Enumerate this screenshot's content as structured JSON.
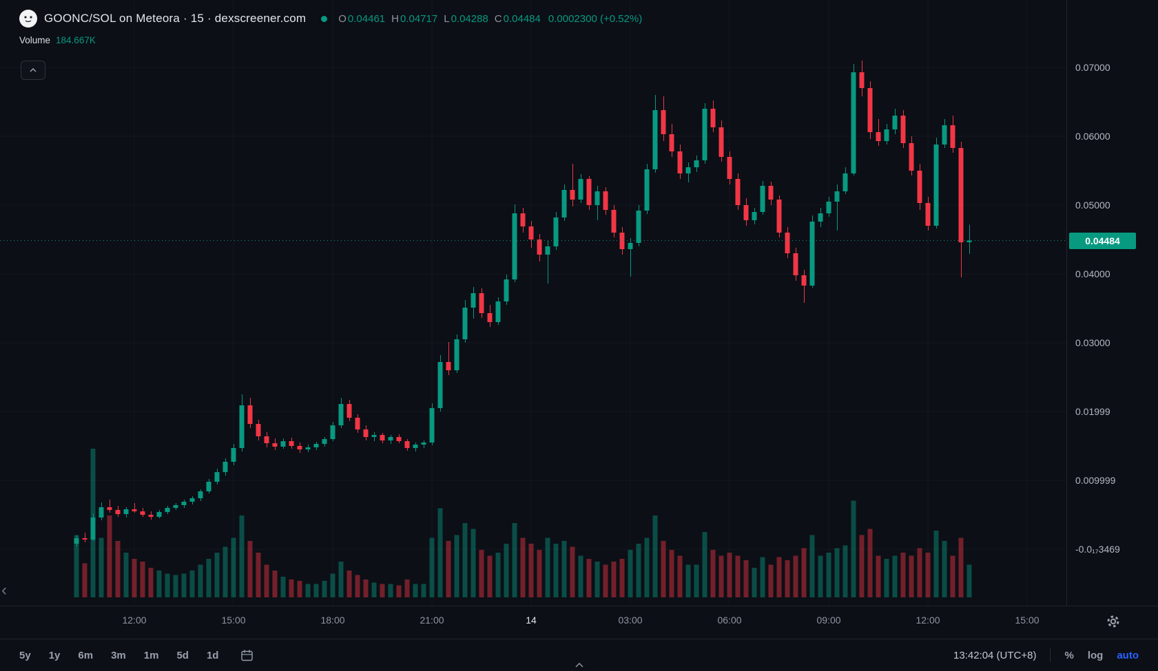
{
  "header": {
    "symbol_title": "GOONC/SOL on Meteora · 15 · dexscreener.com",
    "ohlc": {
      "o_label": "O",
      "o": "0.04461",
      "h_label": "H",
      "h": "0.04717",
      "l_label": "L",
      "l": "0.04288",
      "c_label": "C",
      "c": "0.04484",
      "change": "0.0002300 (+0.52%)"
    },
    "volume_label": "Volume",
    "volume_value": "184.667K"
  },
  "colors": {
    "up": "#089981",
    "down": "#f23645",
    "up_volume": "rgba(8,153,129,0.45)",
    "down_volume": "rgba(242,54,69,0.45)",
    "badge_bg": "#089981",
    "accent_blue": "#2962ff",
    "background": "#0c0f16"
  },
  "toolbar": {
    "ranges": [
      "5y",
      "1y",
      "6m",
      "3m",
      "1m",
      "5d",
      "1d"
    ],
    "clock": "13:42:04 (UTC+8)",
    "percent_label": "%",
    "log_label": "log",
    "auto_label": "auto"
  },
  "chart_data": {
    "type": "candlestick",
    "title": "GOONC/SOL on Meteora · 15 · dexscreener.com",
    "interval_minutes": 15,
    "ohlc_readout": {
      "open": 0.04461,
      "high": 0.04717,
      "low": 0.04288,
      "close": 0.04484,
      "change": "0.0002300 (+0.52%)"
    },
    "volume_readout": "184.667K",
    "last_price": {
      "value": 0.04484,
      "label": "0.04484"
    },
    "price_axis": {
      "labels": [
        {
          "text": "0.07000",
          "value": 0.07
        },
        {
          "text": "0.06000",
          "value": 0.06
        },
        {
          "text": "0.05000",
          "value": 0.05
        },
        {
          "text": "0.04000",
          "value": 0.04
        },
        {
          "text": "0.03000",
          "value": 0.03
        },
        {
          "text": "0.01999",
          "value": 0.02
        },
        {
          "text": "0.009999",
          "value": 0.01
        },
        {
          "text": "-0.0₁₇3469",
          "value": 0.0
        }
      ]
    },
    "time_axis": {
      "ticks": [
        {
          "label": "12:00",
          "index": 7
        },
        {
          "label": "15:00",
          "index": 19
        },
        {
          "label": "18:00",
          "index": 31
        },
        {
          "label": "21:00",
          "index": 43
        },
        {
          "label": "14",
          "index": 55,
          "major": true
        },
        {
          "label": "03:00",
          "index": 67
        },
        {
          "label": "06:00",
          "index": 79
        },
        {
          "label": "09:00",
          "index": 91
        },
        {
          "label": "12:00",
          "index": 103
        },
        {
          "label": "15:00",
          "index": 115
        }
      ]
    },
    "candles": [
      [
        0.0008,
        0.002,
        0.0004,
        0.0016
      ],
      [
        0.0016,
        0.0024,
        0.001,
        0.0014
      ],
      [
        0.0014,
        0.0052,
        0.0012,
        0.0046
      ],
      [
        0.0046,
        0.0068,
        0.0042,
        0.0061
      ],
      [
        0.0061,
        0.0072,
        0.0053,
        0.0057
      ],
      [
        0.0057,
        0.0063,
        0.0047,
        0.0051
      ],
      [
        0.0051,
        0.0061,
        0.0046,
        0.0058
      ],
      [
        0.0058,
        0.0067,
        0.0053,
        0.0055
      ],
      [
        0.0055,
        0.006,
        0.0047,
        0.005
      ],
      [
        0.005,
        0.0055,
        0.0043,
        0.0047
      ],
      [
        0.0047,
        0.0057,
        0.0045,
        0.0054
      ],
      [
        0.0054,
        0.0063,
        0.0051,
        0.006
      ],
      [
        0.006,
        0.0067,
        0.0057,
        0.0064
      ],
      [
        0.0064,
        0.0072,
        0.006,
        0.0069
      ],
      [
        0.0069,
        0.0077,
        0.0065,
        0.0074
      ],
      [
        0.0074,
        0.0087,
        0.007,
        0.0084
      ],
      [
        0.0084,
        0.0102,
        0.0081,
        0.0098
      ],
      [
        0.0098,
        0.0117,
        0.0094,
        0.0112
      ],
      [
        0.0112,
        0.0132,
        0.0107,
        0.0127
      ],
      [
        0.0127,
        0.0153,
        0.0122,
        0.0147
      ],
      [
        0.0147,
        0.0225,
        0.0142,
        0.0209
      ],
      [
        0.0209,
        0.022,
        0.0176,
        0.0182
      ],
      [
        0.0182,
        0.0188,
        0.0158,
        0.0164
      ],
      [
        0.0164,
        0.017,
        0.0148,
        0.0154
      ],
      [
        0.0154,
        0.0161,
        0.0144,
        0.0149
      ],
      [
        0.0149,
        0.0161,
        0.0146,
        0.0157
      ],
      [
        0.0157,
        0.0162,
        0.0146,
        0.015
      ],
      [
        0.015,
        0.0155,
        0.014,
        0.0145
      ],
      [
        0.0145,
        0.0152,
        0.0141,
        0.0148
      ],
      [
        0.0148,
        0.0156,
        0.0144,
        0.0153
      ],
      [
        0.0153,
        0.0163,
        0.0149,
        0.016
      ],
      [
        0.016,
        0.0185,
        0.0157,
        0.018
      ],
      [
        0.018,
        0.022,
        0.0176,
        0.0211
      ],
      [
        0.0211,
        0.0217,
        0.0186,
        0.0191
      ],
      [
        0.0191,
        0.0196,
        0.0169,
        0.0174
      ],
      [
        0.0174,
        0.018,
        0.0158,
        0.0163
      ],
      [
        0.0163,
        0.017,
        0.0157,
        0.0166
      ],
      [
        0.0166,
        0.0169,
        0.0154,
        0.0158
      ],
      [
        0.0158,
        0.0166,
        0.0153,
        0.0163
      ],
      [
        0.0163,
        0.0167,
        0.0154,
        0.0157
      ],
      [
        0.0157,
        0.016,
        0.0143,
        0.0147
      ],
      [
        0.0147,
        0.0155,
        0.0142,
        0.0152
      ],
      [
        0.0152,
        0.0158,
        0.0147,
        0.0155
      ],
      [
        0.0155,
        0.0212,
        0.0151,
        0.0205
      ],
      [
        0.0205,
        0.0282,
        0.02,
        0.0272
      ],
      [
        0.0272,
        0.0301,
        0.0253,
        0.026
      ],
      [
        0.026,
        0.0312,
        0.0256,
        0.0305
      ],
      [
        0.0305,
        0.0362,
        0.03,
        0.0351
      ],
      [
        0.0351,
        0.0381,
        0.0335,
        0.0372
      ],
      [
        0.0372,
        0.0379,
        0.0336,
        0.0343
      ],
      [
        0.0343,
        0.0355,
        0.0323,
        0.033
      ],
      [
        0.033,
        0.0366,
        0.0326,
        0.036
      ],
      [
        0.036,
        0.0399,
        0.0355,
        0.0392
      ],
      [
        0.0392,
        0.0501,
        0.0388,
        0.0488
      ],
      [
        0.0488,
        0.0496,
        0.046,
        0.0469
      ],
      [
        0.0469,
        0.0477,
        0.0438,
        0.045
      ],
      [
        0.045,
        0.0458,
        0.0418,
        0.0428
      ],
      [
        0.0428,
        0.0448,
        0.0386,
        0.044
      ],
      [
        0.044,
        0.049,
        0.0435,
        0.0482
      ],
      [
        0.0482,
        0.053,
        0.0477,
        0.0522
      ],
      [
        0.0522,
        0.056,
        0.0498,
        0.0508
      ],
      [
        0.0508,
        0.0545,
        0.0503,
        0.0538
      ],
      [
        0.0538,
        0.0542,
        0.0493,
        0.05
      ],
      [
        0.05,
        0.0528,
        0.0478,
        0.052
      ],
      [
        0.052,
        0.0526,
        0.0486,
        0.0493
      ],
      [
        0.0493,
        0.05,
        0.0453,
        0.046
      ],
      [
        0.046,
        0.0468,
        0.0428,
        0.0436
      ],
      [
        0.0436,
        0.0452,
        0.0396,
        0.0445
      ],
      [
        0.0445,
        0.05,
        0.044,
        0.0492
      ],
      [
        0.0492,
        0.056,
        0.0487,
        0.0552
      ],
      [
        0.0552,
        0.066,
        0.0547,
        0.0638
      ],
      [
        0.0638,
        0.0658,
        0.0593,
        0.0603
      ],
      [
        0.0603,
        0.0618,
        0.057,
        0.0578
      ],
      [
        0.0578,
        0.0588,
        0.0538,
        0.0546
      ],
      [
        0.0546,
        0.0562,
        0.0533,
        0.0555
      ],
      [
        0.0555,
        0.0572,
        0.0548,
        0.0565
      ],
      [
        0.0565,
        0.0648,
        0.056,
        0.064
      ],
      [
        0.064,
        0.0652,
        0.0606,
        0.0613
      ],
      [
        0.0613,
        0.0623,
        0.0563,
        0.057
      ],
      [
        0.057,
        0.0578,
        0.053,
        0.0538
      ],
      [
        0.0538,
        0.0546,
        0.0493,
        0.05
      ],
      [
        0.05,
        0.051,
        0.047,
        0.0478
      ],
      [
        0.0478,
        0.0496,
        0.0472,
        0.049
      ],
      [
        0.049,
        0.0535,
        0.0486,
        0.0528
      ],
      [
        0.0528,
        0.0534,
        0.05,
        0.0508
      ],
      [
        0.0508,
        0.0514,
        0.0453,
        0.046
      ],
      [
        0.046,
        0.0468,
        0.0423,
        0.043
      ],
      [
        0.043,
        0.0438,
        0.039,
        0.0398
      ],
      [
        0.0398,
        0.0406,
        0.0358,
        0.0383
      ],
      [
        0.0383,
        0.0485,
        0.038,
        0.0476
      ],
      [
        0.0476,
        0.0496,
        0.0468,
        0.0488
      ],
      [
        0.0488,
        0.0512,
        0.0483,
        0.0505
      ],
      [
        0.0505,
        0.053,
        0.0463,
        0.052
      ],
      [
        0.052,
        0.0555,
        0.0516,
        0.0546
      ],
      [
        0.0546,
        0.0705,
        0.0543,
        0.0693
      ],
      [
        0.0693,
        0.071,
        0.0658,
        0.067
      ],
      [
        0.067,
        0.068,
        0.0596,
        0.0606
      ],
      [
        0.0606,
        0.0625,
        0.0586,
        0.0593
      ],
      [
        0.0593,
        0.0618,
        0.0588,
        0.061
      ],
      [
        0.061,
        0.064,
        0.0603,
        0.063
      ],
      [
        0.063,
        0.0638,
        0.0583,
        0.059
      ],
      [
        0.059,
        0.06,
        0.0543,
        0.055
      ],
      [
        0.055,
        0.056,
        0.0493,
        0.0503
      ],
      [
        0.0503,
        0.0512,
        0.0463,
        0.047
      ],
      [
        0.047,
        0.0598,
        0.0466,
        0.0588
      ],
      [
        0.0588,
        0.0625,
        0.0583,
        0.0616
      ],
      [
        0.0616,
        0.063,
        0.0576,
        0.0583
      ],
      [
        0.0583,
        0.0592,
        0.0395,
        0.0446
      ],
      [
        0.04461,
        0.04717,
        0.04288,
        0.04484
      ]
    ],
    "volumes": [
      42,
      23,
      100,
      40,
      55,
      38,
      30,
      26,
      24,
      20,
      18,
      16,
      15,
      16,
      18,
      22,
      26,
      30,
      34,
      40,
      55,
      38,
      30,
      22,
      18,
      14,
      12,
      11,
      9,
      9,
      11,
      16,
      24,
      18,
      15,
      12,
      10,
      9,
      9,
      8,
      12,
      9,
      9,
      40,
      60,
      38,
      42,
      50,
      46,
      32,
      28,
      30,
      36,
      50,
      40,
      36,
      32,
      40,
      36,
      38,
      34,
      28,
      26,
      24,
      22,
      24,
      26,
      32,
      36,
      40,
      55,
      38,
      32,
      28,
      22,
      22,
      44,
      32,
      28,
      30,
      28,
      25,
      20,
      27,
      22,
      27,
      25,
      28,
      33,
      42,
      28,
      30,
      33,
      35,
      65,
      42,
      46,
      28,
      26,
      28,
      30,
      28,
      33,
      30,
      45,
      38,
      28,
      40,
      22
    ]
  }
}
